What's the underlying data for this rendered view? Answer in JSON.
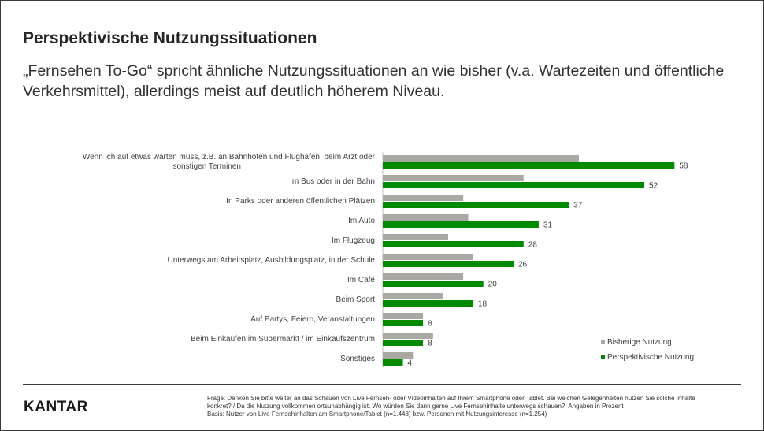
{
  "header": {
    "title": "Perspektivische Nutzungssituationen",
    "subtitle": "„Fernsehen To-Go“ spricht ähnliche Nutzungssituationen an wie bisher (v.a. Wartezeiten und öffentliche Verkehrsmittel), allerdings meist auf deutlich höherem Niveau."
  },
  "colors": {
    "series_1": "#aaa8a3",
    "series_2": "#008a00",
    "text": "#262626",
    "rule": "#3c3c3c"
  },
  "chart_data": {
    "type": "bar",
    "orientation": "horizontal",
    "categories": [
      "Wenn ich auf etwas warten muss, z.B. an Bahnhöfen und Flughäfen, beim Arzt oder sonstigen Terminen",
      "Im Bus oder in der Bahn",
      "In Parks oder anderen öffentlichen Plätzen",
      "Im Auto",
      "Im Flugzeug",
      "Unterwegs am Arbeitsplatz, Ausbildungsplatz, in der Schule",
      "Im Café",
      "Beim Sport",
      "Auf Partys, Feiern, Veranstaltungen",
      "Beim Einkaufen im Supermarkt / im Einkaufszentrum",
      "Sonstiges"
    ],
    "series": [
      {
        "name": "Bisherige Nutzung",
        "values": [
          39,
          28,
          16,
          17,
          13,
          18,
          16,
          12,
          8,
          10,
          6
        ],
        "labeled": false
      },
      {
        "name": "Perspektivische Nutzung",
        "values": [
          58,
          52,
          37,
          31,
          28,
          26,
          20,
          18,
          8,
          8,
          4
        ],
        "labeled": true
      }
    ],
    "xlim": [
      0,
      65
    ],
    "grid": false,
    "legend": "bottom-right"
  },
  "footer": {
    "logo": "KANTAR",
    "note_question": "Frage: Denken Sie bitte weiter an das Schauen von Live Fernseh- oder Videoinhalten auf Ihrem Smartphone oder Tablet. Bei welchen Gelegenheiten nutzen Sie solche Inhalte konkret? / Da die Nutzung vollkommen ortsunabhängig ist: Wo würden Sie dann gerne Live Fernsehinhalte unterwegs schauen?; Angaben in Prozent",
    "note_basis": "Basis: Nutzer von Live Fernsehinhalten am Smartphone/Tablet (n=1.448) bzw. Personen mit Nutzungsinteresse (n=1.254)"
  }
}
